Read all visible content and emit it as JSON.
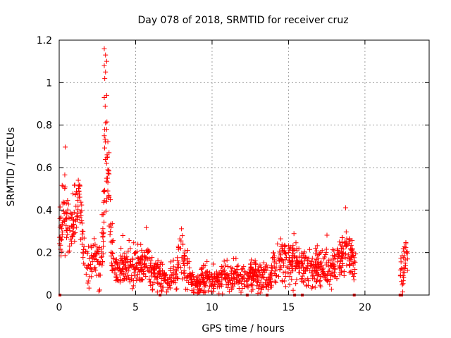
{
  "chart_data": {
    "type": "scatter",
    "title": "Day 078 of 2018, SRMTID for receiver cruz",
    "xlabel": "GPS time / hours",
    "ylabel": "SRMTID / TECUs",
    "xlim": [
      0,
      24.2
    ],
    "ylim": [
      0,
      1.2
    ],
    "xticks": [
      0,
      5,
      10,
      15,
      20
    ],
    "xtick_labels": [
      "0",
      "5",
      "10",
      "15",
      "20"
    ],
    "yticks": [
      0,
      0.2,
      0.4,
      0.6,
      0.8,
      1.0,
      1.2
    ],
    "ytick_labels": [
      "0",
      "0.2",
      "0.4",
      "0.6",
      "0.8",
      "1",
      "1.2"
    ],
    "grid": true,
    "marker": "+",
    "color": "#ff0000",
    "envelope": [
      {
        "x": 0.0,
        "y": 0.25,
        "spread": 0.1
      },
      {
        "x": 0.3,
        "y": 0.45,
        "spread": 0.12
      },
      {
        "x": 0.6,
        "y": 0.28,
        "spread": 0.1
      },
      {
        "x": 1.0,
        "y": 0.35,
        "spread": 0.09
      },
      {
        "x": 1.3,
        "y": 0.5,
        "spread": 0.07
      },
      {
        "x": 1.6,
        "y": 0.18,
        "spread": 0.08
      },
      {
        "x": 2.0,
        "y": 0.15,
        "spread": 0.08
      },
      {
        "x": 2.4,
        "y": 0.2,
        "spread": 0.09
      },
      {
        "x": 2.7,
        "y": 0.15,
        "spread": 0.08
      },
      {
        "x": 2.9,
        "y": 0.3,
        "spread": 0.15
      },
      {
        "x": 3.0,
        "y": 0.85,
        "spread": 0.28
      },
      {
        "x": 3.2,
        "y": 0.55,
        "spread": 0.12
      },
      {
        "x": 3.4,
        "y": 0.2,
        "spread": 0.1
      },
      {
        "x": 3.7,
        "y": 0.12,
        "spread": 0.06
      },
      {
        "x": 4.2,
        "y": 0.13,
        "spread": 0.06
      },
      {
        "x": 5.0,
        "y": 0.12,
        "spread": 0.06
      },
      {
        "x": 5.6,
        "y": 0.16,
        "spread": 0.08
      },
      {
        "x": 6.3,
        "y": 0.1,
        "spread": 0.05
      },
      {
        "x": 7.0,
        "y": 0.07,
        "spread": 0.04
      },
      {
        "x": 7.5,
        "y": 0.09,
        "spread": 0.05
      },
      {
        "x": 8.0,
        "y": 0.2,
        "spread": 0.1
      },
      {
        "x": 8.5,
        "y": 0.09,
        "spread": 0.05
      },
      {
        "x": 9.0,
        "y": 0.06,
        "spread": 0.04
      },
      {
        "x": 9.5,
        "y": 0.08,
        "spread": 0.05
      },
      {
        "x": 10.0,
        "y": 0.07,
        "spread": 0.04
      },
      {
        "x": 11.0,
        "y": 0.08,
        "spread": 0.05
      },
      {
        "x": 12.0,
        "y": 0.09,
        "spread": 0.05
      },
      {
        "x": 13.0,
        "y": 0.09,
        "spread": 0.05
      },
      {
        "x": 13.8,
        "y": 0.08,
        "spread": 0.05
      },
      {
        "x": 14.3,
        "y": 0.15,
        "spread": 0.07
      },
      {
        "x": 14.8,
        "y": 0.18,
        "spread": 0.08
      },
      {
        "x": 15.3,
        "y": 0.16,
        "spread": 0.08
      },
      {
        "x": 15.8,
        "y": 0.14,
        "spread": 0.07
      },
      {
        "x": 16.5,
        "y": 0.11,
        "spread": 0.06
      },
      {
        "x": 17.2,
        "y": 0.13,
        "spread": 0.06
      },
      {
        "x": 18.0,
        "y": 0.12,
        "spread": 0.06
      },
      {
        "x": 18.7,
        "y": 0.2,
        "spread": 0.08
      },
      {
        "x": 19.2,
        "y": 0.17,
        "spread": 0.07
      },
      {
        "x": 22.4,
        "y": 0.12,
        "spread": 0.06
      },
      {
        "x": 22.7,
        "y": 0.19,
        "spread": 0.07
      }
    ],
    "segments": [
      [
        0.0,
        19.4
      ],
      [
        22.3,
        22.8
      ]
    ],
    "point_count": 1400,
    "zero_markers_x": [
      0.05,
      6.6,
      12.3,
      13.6,
      15.4,
      15.9,
      19.3,
      22.3,
      22.4
    ]
  }
}
